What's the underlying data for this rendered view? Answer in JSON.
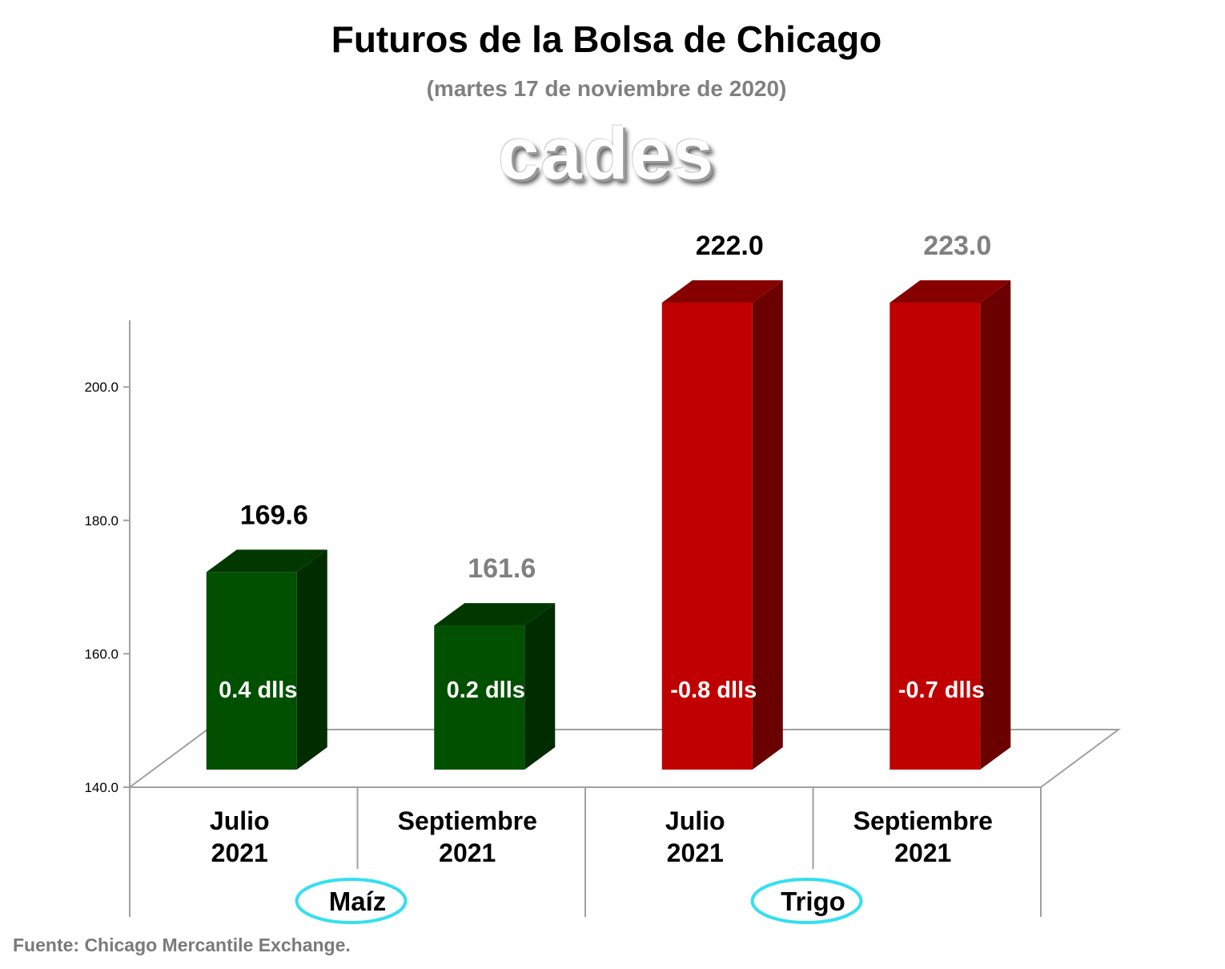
{
  "title": "Futuros de la Bolsa de Chicago",
  "subtitle": "(martes 17 de noviembre de 2020)",
  "logo_text": "cades",
  "source": "Fuente: Chicago Mercantile Exchange.",
  "chart_data": {
    "type": "bar",
    "categories": [
      "Julio\n2021",
      "Septiembre\n2021",
      "Julio\n2021",
      "Septiembre\n2021"
    ],
    "groups": [
      {
        "label": "Maíz",
        "categories": [
          0,
          1
        ]
      },
      {
        "label": "Trigo",
        "categories": [
          2,
          3
        ]
      }
    ],
    "values": [
      169.6,
      161.6,
      222.0,
      223.0
    ],
    "value_labels": [
      "169.6",
      "161.6",
      "222.0",
      "223.0"
    ],
    "change_labels": [
      "0.4 dlls",
      "0.2 dlls",
      "-0.8 dlls",
      "-0.7 dlls"
    ],
    "bar_colors": [
      "#005000",
      "#005000",
      "#c00000",
      "#c00000"
    ],
    "value_label_colors": [
      "#000000",
      "#808080",
      "#000000",
      "#808080"
    ],
    "y_ticks": [
      "140.0",
      "160.0",
      "180.0",
      "200.0"
    ],
    "y_tick_values": [
      140,
      160,
      180,
      200
    ],
    "ylim": [
      140,
      210
    ],
    "grid": false,
    "legend": "none",
    "group_ellipse_color": "#33e0f0"
  }
}
